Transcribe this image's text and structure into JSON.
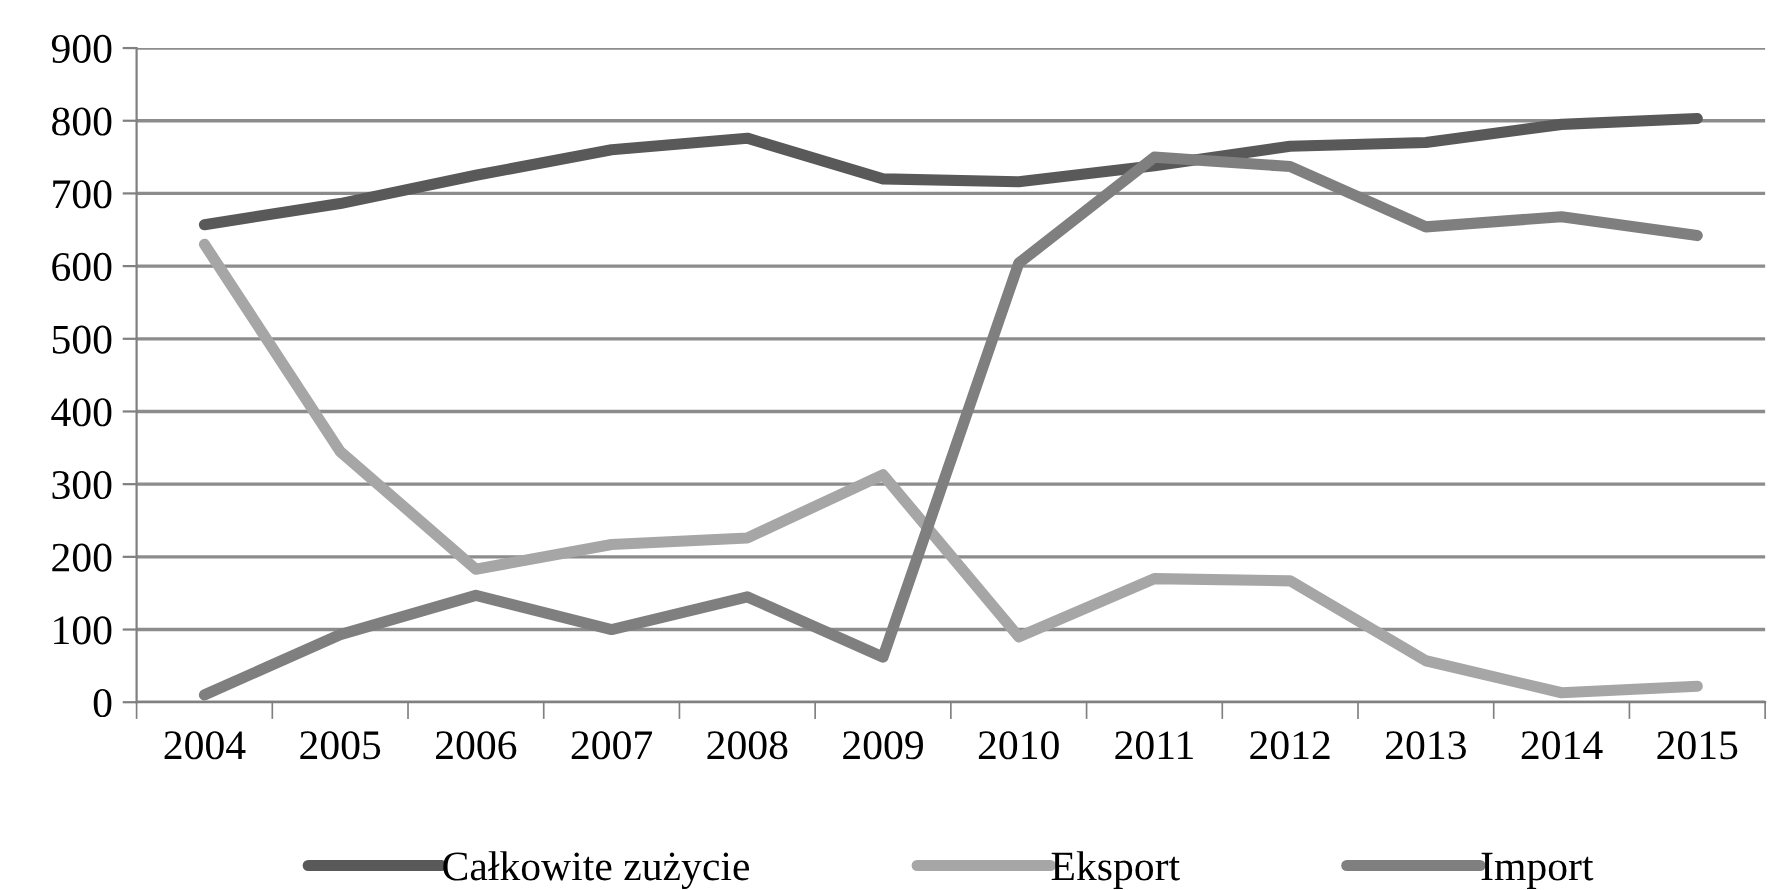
{
  "chart_data": {
    "type": "line",
    "categories": [
      "2004",
      "2005",
      "2006",
      "2007",
      "2008",
      "2009",
      "2010",
      "2011",
      "2012",
      "2013",
      "2014",
      "2015"
    ],
    "series": [
      {
        "name": "Całkowite zużycie",
        "color": "#595959",
        "values": [
          657,
          686,
          725,
          760,
          776,
          720,
          716,
          738,
          765,
          770,
          795,
          803
        ]
      },
      {
        "name": "Eksport",
        "color": "#a6a6a6",
        "values": [
          630,
          345,
          183,
          217,
          226,
          313,
          90,
          170,
          167,
          57,
          13,
          22
        ]
      },
      {
        "name": "Import",
        "color": "#7f7f7f",
        "values": [
          10,
          93,
          147,
          100,
          145,
          62,
          604,
          750,
          737,
          654,
          668,
          642
        ]
      }
    ],
    "ylim": [
      0,
      900
    ],
    "yticks": [
      0,
      100,
      200,
      300,
      400,
      500,
      600,
      700,
      800,
      900
    ],
    "grid": "y",
    "legend": "bottom",
    "marker": "none",
    "line_style": "solid"
  }
}
